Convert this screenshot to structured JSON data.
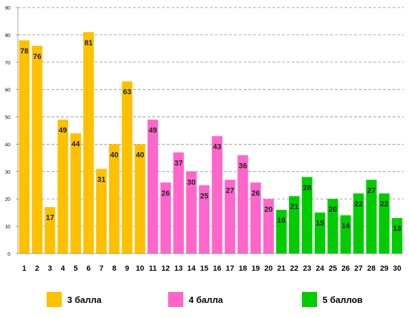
{
  "chart_data": {
    "type": "bar",
    "title": "",
    "xlabel": "",
    "ylabel": "",
    "ylim": [
      0,
      90
    ],
    "yticks": [
      0,
      10,
      20,
      30,
      40,
      50,
      60,
      70,
      80,
      90
    ],
    "grid": "horizontal dashed",
    "legend_position": "bottom",
    "categories": [
      "1",
      "2",
      "3",
      "4",
      "5",
      "6",
      "7",
      "8",
      "9",
      "10",
      "11",
      "12",
      "13",
      "14",
      "15",
      "16",
      "17",
      "18",
      "19",
      "20",
      "21",
      "22",
      "23",
      "24",
      "25",
      "26",
      "27",
      "28",
      "29",
      "30"
    ],
    "series": [
      {
        "name": "3 балла",
        "color": "#FFC000",
        "x": [
          1,
          2,
          3,
          4,
          5,
          6,
          7,
          8,
          9,
          10
        ],
        "values": [
          78,
          76,
          17,
          49,
          44,
          81,
          31,
          40,
          63,
          40
        ]
      },
      {
        "name": "4 балла",
        "color": "#FF66CC",
        "x": [
          11,
          12,
          13,
          14,
          15,
          16,
          17,
          18,
          19,
          20
        ],
        "values": [
          49,
          26,
          37,
          30,
          25,
          43,
          27,
          36,
          26,
          20
        ]
      },
      {
        "name": "5 баллов",
        "color": "#00CC00",
        "x": [
          21,
          22,
          23,
          24,
          25,
          26,
          27,
          28,
          29,
          30
        ],
        "values": [
          16,
          21,
          28,
          15,
          20,
          14,
          22,
          27,
          22,
          13
        ]
      }
    ]
  },
  "legend": [
    {
      "label": "3 балла",
      "color": "#FFC000"
    },
    {
      "label": "4 балла",
      "color": "#FF66CC"
    },
    {
      "label": "5 баллов",
      "color": "#00CC00"
    }
  ]
}
